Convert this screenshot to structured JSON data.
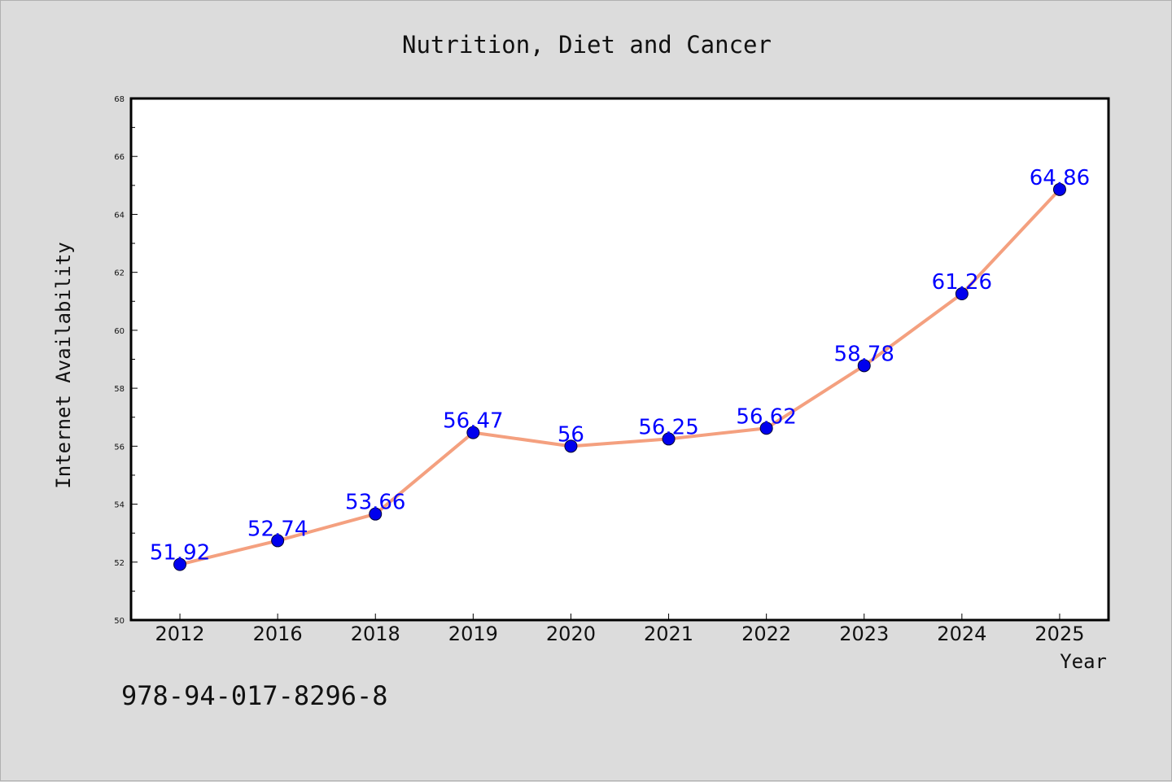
{
  "chart_data": {
    "type": "line",
    "title": "Nutrition, Diet and Cancer",
    "xlabel": "Year",
    "ylabel": "Internet Availability",
    "categories": [
      "2012",
      "2016",
      "2018",
      "2019",
      "2020",
      "2021",
      "2022",
      "2023",
      "2024",
      "2025"
    ],
    "series": [
      {
        "values": [
          51.92,
          52.74,
          53.66,
          56.47,
          56,
          56.25,
          56.62,
          58.78,
          61.26,
          64.86
        ]
      }
    ],
    "data_labels": [
      "51.92",
      "52.74",
      "53.66",
      "56.47",
      "56",
      "56.25",
      "56.62",
      "58.78",
      "61.26",
      "64.86"
    ],
    "ylim": [
      50,
      68
    ],
    "yticks": [
      50,
      52,
      54,
      56,
      58,
      60,
      62,
      64,
      66,
      68
    ],
    "grid": false,
    "legend": "none"
  },
  "annotation": "978-94-017-8296-8",
  "colors": {
    "background": "#dcdcdc",
    "plot_background": "#ffffff",
    "line": "#f4a07f",
    "marker": "#0000ee",
    "data_label": "#0000ff",
    "axis": "#000000"
  }
}
